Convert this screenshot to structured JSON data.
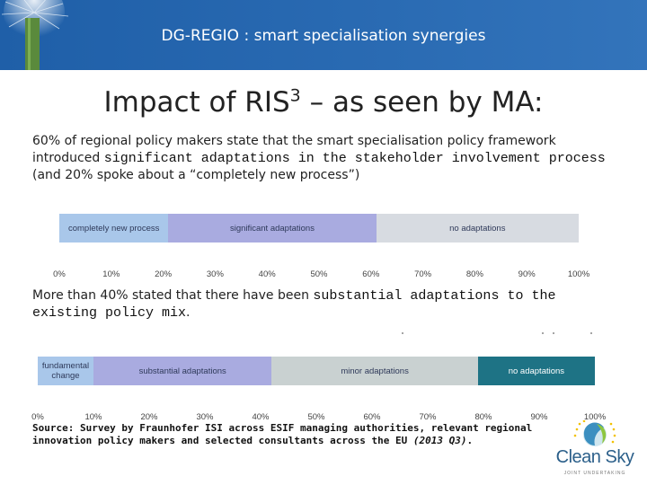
{
  "header": {
    "title": "DG-REGIO : smart specialisation synergies"
  },
  "slide": {
    "title_main": "Impact of RIS",
    "title_sup": "3",
    "title_rest": " – as seen by MA:"
  },
  "para1": {
    "part1": "60% of regional policy makers state that the smart specialisation policy framework introduced ",
    "emphasis": "significant adaptations in the stakeholder involvement process",
    "part2": " (and 20% spoke about a “completely new process”)"
  },
  "para2": {
    "part1": "More than 40% stated that there have been ",
    "emphasis": "substantial adaptations to the existing policy mix",
    "part2": "."
  },
  "chart_data": [
    {
      "type": "bar",
      "orientation": "horizontal-stacked",
      "segments": [
        {
          "label": "completely new process",
          "start": 0,
          "end": 21,
          "color": "#a9c7ea"
        },
        {
          "label": "significant adaptations",
          "start": 21,
          "end": 61,
          "color": "#a9abe0"
        },
        {
          "label": "no adaptations",
          "start": 61,
          "end": 100,
          "color": "#d7dbe1"
        }
      ],
      "ticks": [
        "0%",
        "10%",
        "20%",
        "30%",
        "40%",
        "50%",
        "60%",
        "70%",
        "80%",
        "90%",
        "100%"
      ],
      "xlim": [
        0,
        100
      ]
    },
    {
      "type": "bar",
      "orientation": "horizontal-stacked",
      "segments": [
        {
          "label": "fundamental change",
          "start": 0,
          "end": 10,
          "color": "#a9c7ea"
        },
        {
          "label": "substantial adaptations",
          "start": 10,
          "end": 42,
          "color": "#a9abe0"
        },
        {
          "label": "minor adaptations",
          "start": 42,
          "end": 79,
          "color": "#c9d1d1"
        },
        {
          "label": "no adaptations",
          "start": 79,
          "end": 100,
          "color": "#1e7385"
        }
      ],
      "ticks": [
        "0%",
        "10%",
        "20%",
        "30%",
        "40%",
        "50%",
        "60%",
        "70%",
        "80%",
        "90%",
        "100%"
      ],
      "xlim": [
        0,
        100
      ]
    }
  ],
  "source": {
    "text": "Source: Survey by Fraunhofer ISI across ESIF managing authorities, relevant regional innovation policy makers and selected consultants across the EU ",
    "italic": "(2013 Q3)",
    "end": "."
  },
  "logo": {
    "text": "Clean Sky"
  }
}
